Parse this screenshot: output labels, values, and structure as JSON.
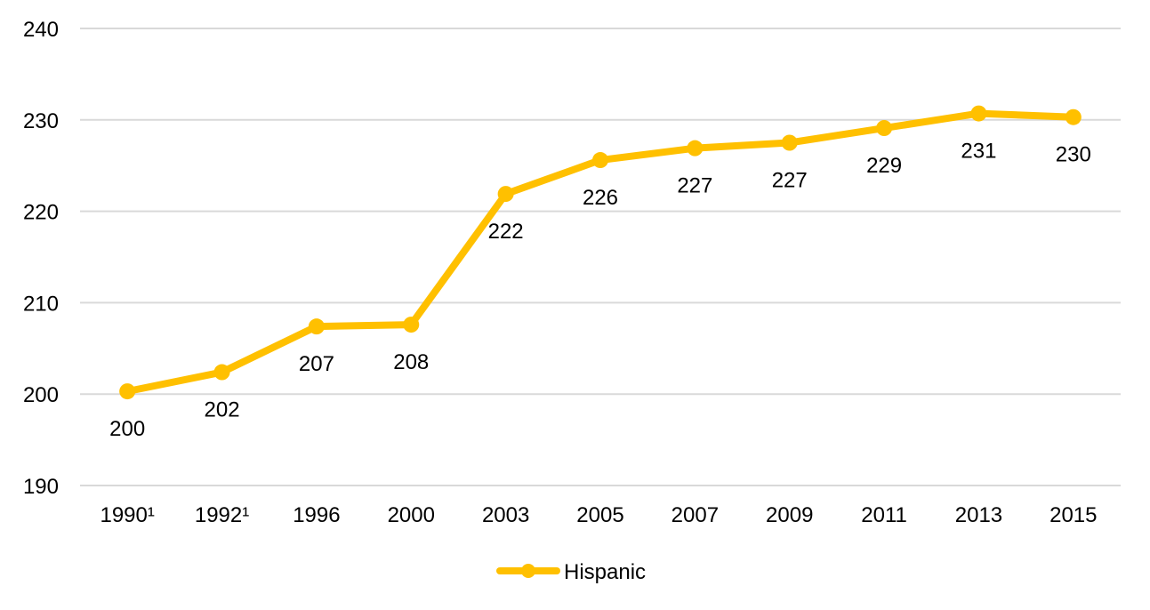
{
  "chart_data": {
    "type": "line",
    "categories": [
      "1990¹",
      "1992¹",
      "1996",
      "2000",
      "2003",
      "2005",
      "2007",
      "2009",
      "2011",
      "2013",
      "2015"
    ],
    "series": [
      {
        "name": "Hispanic",
        "values": [
          200.3,
          202.4,
          207.4,
          207.6,
          221.9,
          225.6,
          226.9,
          227.5,
          229.1,
          230.7,
          230.3
        ],
        "labels": [
          "200",
          "202",
          "207",
          "208",
          "222",
          "226",
          "227",
          "227",
          "229",
          "231",
          "230"
        ],
        "color": "#ffc000"
      }
    ],
    "ylim": [
      190,
      240
    ],
    "yticks": [
      "190",
      "200",
      "210",
      "220",
      "230",
      "240"
    ],
    "grid": true,
    "legend": "bottom-center"
  }
}
